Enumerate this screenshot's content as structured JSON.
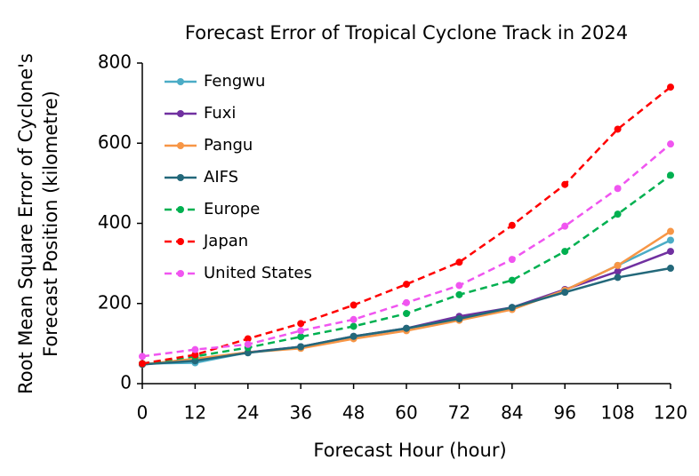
{
  "chart_data": {
    "type": "line",
    "title": "Forecast Error of Tropical Cyclone Track in 2024",
    "xlabel": "Forecast Hour (hour)",
    "ylabel": [
      "Root Mean Square Error of Cyclone's",
      "Forecast Position (kilometre)"
    ],
    "x": [
      0,
      12,
      24,
      36,
      48,
      60,
      72,
      84,
      96,
      108,
      120
    ],
    "xlim": [
      0,
      120
    ],
    "xticks": [
      0,
      12,
      24,
      36,
      48,
      60,
      72,
      84,
      96,
      108,
      120
    ],
    "ylim": [
      0,
      800
    ],
    "yticks": [
      0,
      200,
      400,
      600,
      800
    ],
    "legend": "upper-left",
    "series": [
      {
        "name": "Fengwu",
        "color": "#4bacc6",
        "dashed": false,
        "values": [
          50,
          52,
          78,
          92,
          117,
          137,
          165,
          190,
          233,
          295,
          358
        ]
      },
      {
        "name": "Fuxi",
        "color": "#7030a0",
        "dashed": false,
        "values": [
          48,
          60,
          78,
          92,
          118,
          138,
          168,
          190,
          235,
          280,
          330
        ]
      },
      {
        "name": "Pangu",
        "color": "#f79646",
        "dashed": false,
        "values": [
          48,
          62,
          78,
          88,
          112,
          132,
          158,
          185,
          233,
          295,
          380
        ]
      },
      {
        "name": "AIFS",
        "color": "#23687a",
        "dashed": false,
        "values": [
          48,
          57,
          77,
          92,
          118,
          138,
          162,
          190,
          228,
          265,
          288
        ]
      },
      {
        "name": "Europe",
        "color": "#00b050",
        "dashed": true,
        "values": [
          50,
          68,
          90,
          117,
          143,
          175,
          222,
          258,
          330,
          423,
          520
        ]
      },
      {
        "name": "Japan",
        "color": "#ff0000",
        "dashed": true,
        "values": [
          50,
          72,
          112,
          150,
          196,
          248,
          303,
          395,
          497,
          635,
          740
        ]
      },
      {
        "name": "United States",
        "color": "#f055f0",
        "dashed": true,
        "values": [
          68,
          85,
          98,
          132,
          160,
          202,
          245,
          310,
          393,
          487,
          598
        ]
      }
    ]
  }
}
